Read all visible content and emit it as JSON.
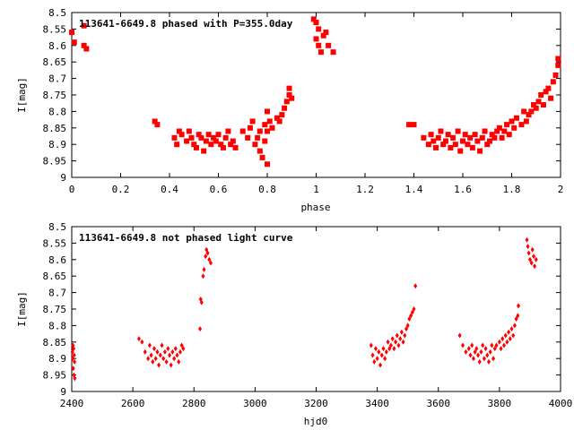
{
  "chart_data": [
    {
      "type": "scatter",
      "title": "113641-6649.8 phased with P=355.0day",
      "xlabel": "phase",
      "ylabel": "I[mag]",
      "xlim": [
        0,
        2
      ],
      "ylim": [
        9,
        8.5
      ],
      "y_axis_inverted": true,
      "grid": false,
      "marker": "square",
      "color": "#ff0000",
      "x_ticks": [
        "0",
        "0.2",
        "0.4",
        "0.6",
        "0.8",
        "1",
        "1.2",
        "1.4",
        "1.6",
        "1.8",
        "2"
      ],
      "y_ticks": [
        "8.5",
        "8.55",
        "8.6",
        "8.65",
        "8.7",
        "8.75",
        "8.8",
        "8.85",
        "8.9",
        "8.95",
        "9"
      ],
      "points": [
        [
          0.0,
          8.56
        ],
        [
          0.01,
          8.59
        ],
        [
          0.05,
          8.54
        ],
        [
          0.05,
          8.6
        ],
        [
          0.06,
          8.61
        ],
        [
          0.34,
          8.83
        ],
        [
          0.35,
          8.84
        ],
        [
          0.42,
          8.88
        ],
        [
          0.43,
          8.9
        ],
        [
          0.44,
          8.86
        ],
        [
          0.45,
          8.87
        ],
        [
          0.47,
          8.89
        ],
        [
          0.48,
          8.86
        ],
        [
          0.49,
          8.88
        ],
        [
          0.5,
          8.9
        ],
        [
          0.51,
          8.91
        ],
        [
          0.52,
          8.87
        ],
        [
          0.53,
          8.88
        ],
        [
          0.54,
          8.92
        ],
        [
          0.55,
          8.89
        ],
        [
          0.56,
          8.87
        ],
        [
          0.57,
          8.9
        ],
        [
          0.58,
          8.88
        ],
        [
          0.59,
          8.89
        ],
        [
          0.6,
          8.87
        ],
        [
          0.61,
          8.9
        ],
        [
          0.62,
          8.91
        ],
        [
          0.63,
          8.88
        ],
        [
          0.64,
          8.86
        ],
        [
          0.65,
          8.9
        ],
        [
          0.66,
          8.89
        ],
        [
          0.67,
          8.91
        ],
        [
          0.7,
          8.86
        ],
        [
          0.72,
          8.88
        ],
        [
          0.73,
          8.85
        ],
        [
          0.74,
          8.83
        ],
        [
          0.75,
          8.9
        ],
        [
          0.76,
          8.88
        ],
        [
          0.77,
          8.86
        ],
        [
          0.77,
          8.92
        ],
        [
          0.78,
          8.94
        ],
        [
          0.79,
          8.84
        ],
        [
          0.79,
          8.89
        ],
        [
          0.8,
          8.8
        ],
        [
          0.8,
          8.86
        ],
        [
          0.81,
          8.83
        ],
        [
          0.8,
          8.96
        ],
        [
          0.82,
          8.85
        ],
        [
          0.84,
          8.82
        ],
        [
          0.85,
          8.83
        ],
        [
          0.86,
          8.81
        ],
        [
          0.87,
          8.79
        ],
        [
          0.88,
          8.77
        ],
        [
          0.89,
          8.75
        ],
        [
          0.89,
          8.73
        ],
        [
          0.9,
          8.76
        ],
        [
          0.99,
          8.52
        ],
        [
          1.0,
          8.53
        ],
        [
          1.0,
          8.58
        ],
        [
          1.01,
          8.55
        ],
        [
          1.01,
          8.6
        ],
        [
          1.02,
          8.62
        ],
        [
          1.03,
          8.57
        ],
        [
          1.04,
          8.56
        ],
        [
          1.05,
          8.6
        ],
        [
          1.07,
          8.62
        ],
        [
          1.38,
          8.84
        ],
        [
          1.4,
          8.84
        ],
        [
          1.44,
          8.88
        ],
        [
          1.46,
          8.9
        ],
        [
          1.47,
          8.87
        ],
        [
          1.48,
          8.89
        ],
        [
          1.49,
          8.91
        ],
        [
          1.5,
          8.88
        ],
        [
          1.51,
          8.86
        ],
        [
          1.52,
          8.9
        ],
        [
          1.53,
          8.89
        ],
        [
          1.54,
          8.87
        ],
        [
          1.55,
          8.91
        ],
        [
          1.56,
          8.88
        ],
        [
          1.57,
          8.9
        ],
        [
          1.58,
          8.86
        ],
        [
          1.59,
          8.92
        ],
        [
          1.6,
          8.89
        ],
        [
          1.61,
          8.87
        ],
        [
          1.62,
          8.9
        ],
        [
          1.63,
          8.88
        ],
        [
          1.64,
          8.91
        ],
        [
          1.65,
          8.87
        ],
        [
          1.66,
          8.89
        ],
        [
          1.67,
          8.92
        ],
        [
          1.68,
          8.88
        ],
        [
          1.69,
          8.86
        ],
        [
          1.7,
          8.9
        ],
        [
          1.71,
          8.89
        ],
        [
          1.72,
          8.87
        ],
        [
          1.73,
          8.88
        ],
        [
          1.74,
          8.86
        ],
        [
          1.75,
          8.85
        ],
        [
          1.76,
          8.88
        ],
        [
          1.77,
          8.86
        ],
        [
          1.78,
          8.84
        ],
        [
          1.79,
          8.87
        ],
        [
          1.8,
          8.83
        ],
        [
          1.81,
          8.85
        ],
        [
          1.82,
          8.82
        ],
        [
          1.84,
          8.84
        ],
        [
          1.85,
          8.8
        ],
        [
          1.86,
          8.83
        ],
        [
          1.87,
          8.81
        ],
        [
          1.88,
          8.8
        ],
        [
          1.89,
          8.78
        ],
        [
          1.9,
          8.79
        ],
        [
          1.91,
          8.77
        ],
        [
          1.92,
          8.75
        ],
        [
          1.93,
          8.78
        ],
        [
          1.94,
          8.74
        ],
        [
          1.95,
          8.73
        ],
        [
          1.96,
          8.76
        ],
        [
          1.97,
          8.71
        ],
        [
          1.98,
          8.69
        ],
        [
          1.99,
          8.66
        ],
        [
          1.99,
          8.64
        ]
      ]
    },
    {
      "type": "scatter",
      "title": "113641-6649.8 not phased light curve",
      "xlabel": "hjd0",
      "ylabel": "I[mag]",
      "xlim": [
        2400,
        4000
      ],
      "ylim": [
        9,
        8.5
      ],
      "y_axis_inverted": true,
      "grid": false,
      "marker": "diamond",
      "color": "#ff0000",
      "x_ticks": [
        "2400",
        "2600",
        "2800",
        "3000",
        "3200",
        "3400",
        "3600",
        "3800",
        "4000"
      ],
      "y_ticks": [
        "8.5",
        "8.55",
        "8.6",
        "8.65",
        "8.7",
        "8.75",
        "8.8",
        "8.85",
        "8.9",
        "8.95",
        "9"
      ],
      "points": [
        [
          2402,
          8.88
        ],
        [
          2403,
          8.9
        ],
        [
          2404,
          8.86
        ],
        [
          2405,
          8.93
        ],
        [
          2406,
          8.87
        ],
        [
          2407,
          8.95
        ],
        [
          2408,
          8.89
        ],
        [
          2409,
          8.91
        ],
        [
          2410,
          8.96
        ],
        [
          2620,
          8.84
        ],
        [
          2630,
          8.85
        ],
        [
          2640,
          8.88
        ],
        [
          2650,
          8.9
        ],
        [
          2655,
          8.86
        ],
        [
          2660,
          8.89
        ],
        [
          2665,
          8.91
        ],
        [
          2670,
          8.87
        ],
        [
          2675,
          8.9
        ],
        [
          2680,
          8.88
        ],
        [
          2685,
          8.92
        ],
        [
          2690,
          8.89
        ],
        [
          2695,
          8.86
        ],
        [
          2700,
          8.9
        ],
        [
          2705,
          8.88
        ],
        [
          2710,
          8.91
        ],
        [
          2715,
          8.87
        ],
        [
          2720,
          8.89
        ],
        [
          2725,
          8.92
        ],
        [
          2730,
          8.88
        ],
        [
          2735,
          8.9
        ],
        [
          2740,
          8.87
        ],
        [
          2745,
          8.89
        ],
        [
          2750,
          8.91
        ],
        [
          2755,
          8.88
        ],
        [
          2760,
          8.86
        ],
        [
          2765,
          8.87
        ],
        [
          2820,
          8.81
        ],
        [
          2822,
          8.72
        ],
        [
          2825,
          8.73
        ],
        [
          2830,
          8.65
        ],
        [
          2833,
          8.63
        ],
        [
          2838,
          8.59
        ],
        [
          2841,
          8.57
        ],
        [
          2845,
          8.58
        ],
        [
          2850,
          8.6
        ],
        [
          2855,
          8.61
        ],
        [
          3380,
          8.86
        ],
        [
          3385,
          8.89
        ],
        [
          3390,
          8.91
        ],
        [
          3395,
          8.87
        ],
        [
          3400,
          8.9
        ],
        [
          3405,
          8.88
        ],
        [
          3410,
          8.92
        ],
        [
          3415,
          8.89
        ],
        [
          3420,
          8.87
        ],
        [
          3425,
          8.9
        ],
        [
          3430,
          8.88
        ],
        [
          3435,
          8.85
        ],
        [
          3440,
          8.87
        ],
        [
          3445,
          8.86
        ],
        [
          3450,
          8.84
        ],
        [
          3455,
          8.87
        ],
        [
          3460,
          8.85
        ],
        [
          3465,
          8.83
        ],
        [
          3470,
          8.86
        ],
        [
          3475,
          8.84
        ],
        [
          3480,
          8.82
        ],
        [
          3485,
          8.85
        ],
        [
          3490,
          8.83
        ],
        [
          3495,
          8.81
        ],
        [
          3500,
          8.8
        ],
        [
          3505,
          8.78
        ],
        [
          3510,
          8.77
        ],
        [
          3515,
          8.76
        ],
        [
          3520,
          8.75
        ],
        [
          3525,
          8.68
        ],
        [
          3670,
          8.83
        ],
        [
          3680,
          8.86
        ],
        [
          3690,
          8.88
        ],
        [
          3700,
          8.87
        ],
        [
          3705,
          8.89
        ],
        [
          3710,
          8.86
        ],
        [
          3715,
          8.9
        ],
        [
          3720,
          8.88
        ],
        [
          3725,
          8.87
        ],
        [
          3730,
          8.89
        ],
        [
          3735,
          8.91
        ],
        [
          3740,
          8.88
        ],
        [
          3745,
          8.86
        ],
        [
          3750,
          8.9
        ],
        [
          3755,
          8.87
        ],
        [
          3760,
          8.89
        ],
        [
          3765,
          8.91
        ],
        [
          3770,
          8.88
        ],
        [
          3775,
          8.86
        ],
        [
          3780,
          8.9
        ],
        [
          3785,
          8.87
        ],
        [
          3790,
          8.86
        ],
        [
          3800,
          8.85
        ],
        [
          3805,
          8.87
        ],
        [
          3810,
          8.84
        ],
        [
          3815,
          8.86
        ],
        [
          3820,
          8.83
        ],
        [
          3825,
          8.85
        ],
        [
          3830,
          8.82
        ],
        [
          3835,
          8.84
        ],
        [
          3840,
          8.81
        ],
        [
          3845,
          8.83
        ],
        [
          3850,
          8.8
        ],
        [
          3855,
          8.78
        ],
        [
          3860,
          8.77
        ],
        [
          3862,
          8.74
        ],
        [
          3890,
          8.54
        ],
        [
          3893,
          8.56
        ],
        [
          3896,
          8.58
        ],
        [
          3900,
          8.6
        ],
        [
          3905,
          8.61
        ],
        [
          3908,
          8.57
        ],
        [
          3912,
          8.59
        ],
        [
          3915,
          8.62
        ],
        [
          3920,
          8.6
        ]
      ]
    }
  ]
}
